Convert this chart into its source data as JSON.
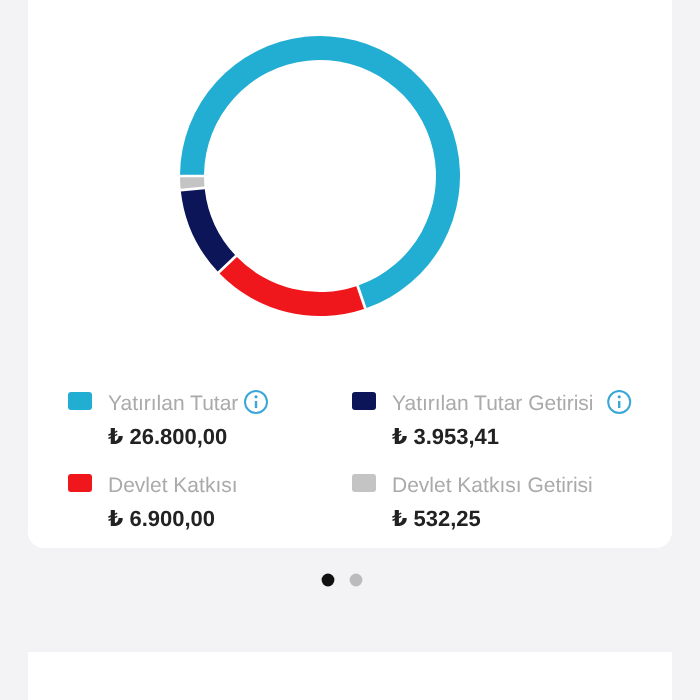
{
  "chart_data": {
    "type": "donut",
    "categories": [
      "Yatırılan Tutar",
      "Devlet Katkısı",
      "Yatırılan Tutar Getirisi",
      "Devlet Katkısı Getirisi"
    ],
    "values": [
      26800,
      6900,
      3953.41,
      532.25
    ],
    "value_labels": [
      "₺ 26.800,00",
      "₺ 6.900,00",
      "₺ 3.953,41",
      "₺ 532,25"
    ],
    "colors": [
      "#22aed3",
      "#f0171c",
      "#0c1558",
      "#c4c4c4"
    ],
    "legend": "bottom"
  }
}
